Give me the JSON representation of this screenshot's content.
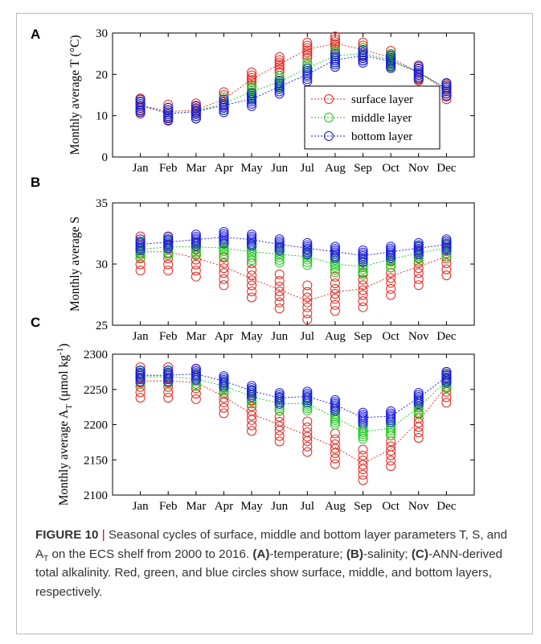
{
  "months": [
    "Jan",
    "Feb",
    "Mar",
    "Apr",
    "May",
    "Jun",
    "Jul",
    "Aug",
    "Sep",
    "Oct",
    "Nov",
    "Dec"
  ],
  "colors": {
    "surface": "#e8241c",
    "middle": "#1ec81e",
    "bottom": "#1818e0"
  },
  "chart_data": [
    {
      "panel": "A",
      "type": "scatter",
      "ylabel": "Monthly average T (°C)",
      "ylim": [
        0,
        30
      ],
      "yticks": [
        0,
        10,
        20,
        30
      ],
      "legend": [
        "surface layer",
        "middle layer",
        "bottom layer"
      ],
      "legend_position": "lower-right",
      "series": [
        {
          "name": "surface layer",
          "color_key": "surface",
          "means": [
            12.5,
            11.0,
            11.3,
            14.0,
            18.8,
            22.5,
            26.0,
            27.5,
            26.0,
            24.0,
            20.5,
            16.0
          ],
          "spread": 1.2
        },
        {
          "name": "middle layer",
          "color_key": "middle",
          "means": [
            12.5,
            10.5,
            11.0,
            13.0,
            15.8,
            18.2,
            21.5,
            24.5,
            25.0,
            23.5,
            20.5,
            16.5
          ],
          "spread": 1.0
        },
        {
          "name": "bottom layer",
          "color_key": "bottom",
          "means": [
            12.5,
            10.5,
            11.0,
            12.5,
            14.0,
            17.0,
            20.0,
            23.5,
            24.5,
            23.2,
            20.5,
            16.5
          ],
          "spread": 1.0
        }
      ]
    },
    {
      "panel": "B",
      "type": "scatter",
      "ylabel": "Monthly average S",
      "ylim": [
        25,
        35
      ],
      "yticks": [
        25,
        30,
        35
      ],
      "series": [
        {
          "name": "surface layer",
          "color_key": "surface",
          "means": [
            31.0,
            31.0,
            30.5,
            29.8,
            28.8,
            27.9,
            27.0,
            27.7,
            28.0,
            29.0,
            29.8,
            30.6
          ],
          "spread": 0.9
        },
        {
          "name": "middle layer",
          "color_key": "middle",
          "means": [
            31.2,
            31.4,
            31.4,
            31.3,
            31.0,
            30.8,
            30.6,
            30.0,
            29.8,
            30.4,
            30.9,
            31.3
          ],
          "spread": 0.4
        },
        {
          "name": "bottom layer",
          "color_key": "bottom",
          "means": [
            31.6,
            31.8,
            32.0,
            32.2,
            32.0,
            31.6,
            31.3,
            31.0,
            30.7,
            31.0,
            31.3,
            31.6
          ],
          "spread": 0.3
        }
      ]
    },
    {
      "panel": "C",
      "type": "scatter",
      "ylabel": "Monthly average A_T (μmol kg⁻¹)",
      "ylim": [
        2100,
        2300
      ],
      "yticks": [
        2100,
        2150,
        2200,
        2250,
        2300
      ],
      "series": [
        {
          "name": "surface layer",
          "color_key": "surface",
          "means": [
            2262,
            2262,
            2260,
            2240,
            2215,
            2200,
            2185,
            2168,
            2145,
            2165,
            2205,
            2255
          ],
          "spread": 14
        },
        {
          "name": "middle layer",
          "color_key": "middle",
          "means": [
            2268,
            2268,
            2265,
            2255,
            2240,
            2230,
            2230,
            2210,
            2190,
            2195,
            2225,
            2262
          ],
          "spread": 6
        },
        {
          "name": "bottom layer",
          "color_key": "bottom",
          "means": [
            2270,
            2270,
            2272,
            2262,
            2248,
            2238,
            2240,
            2228,
            2210,
            2212,
            2238,
            2268
          ],
          "spread": 5
        }
      ]
    }
  ],
  "caption": {
    "figure_label": "FIGURE 10",
    "separator": "|",
    "text_1": " Seasonal cycles of surface, middle and bottom layer parameters T, S, and A",
    "subscript": "T",
    "text_2": " on the ECS shelf from 2000 to 2016. ",
    "panel_a_label": "(A)",
    "panel_a_text": "-temperature; ",
    "panel_b_label": "(B)",
    "panel_b_text": "-salinity; ",
    "panel_c_label": "(C)",
    "panel_c_text": "-ANN-derived total alkalinity. Red, green, and blue circles show surface, middle, and bottom layers, respectively."
  }
}
